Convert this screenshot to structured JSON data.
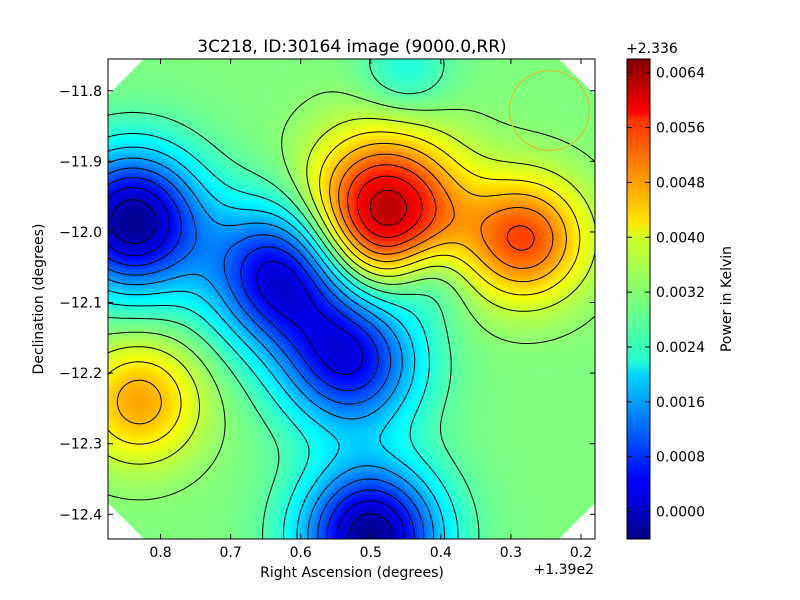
{
  "chart_data": {
    "type": "heatmap",
    "title": "3C218, ID:30164 image (9000.0,RR)",
    "xlabel": "Right Ascension (degrees)",
    "ylabel": "Declination (degrees)",
    "x_offset_label": "+1.39e2",
    "x_ticks": [
      {
        "value": 0.8,
        "label": "0.8"
      },
      {
        "value": 0.7,
        "label": "0.7"
      },
      {
        "value": 0.6,
        "label": "0.6"
      },
      {
        "value": 0.5,
        "label": "0.5"
      },
      {
        "value": 0.4,
        "label": "0.4"
      },
      {
        "value": 0.3,
        "label": "0.3"
      },
      {
        "value": 0.2,
        "label": "0.2"
      }
    ],
    "y_ticks": [
      {
        "value": -11.8,
        "label": "−11.8"
      },
      {
        "value": -11.9,
        "label": "−11.9"
      },
      {
        "value": -12.0,
        "label": "−12.0"
      },
      {
        "value": -12.1,
        "label": "−12.1"
      },
      {
        "value": -12.2,
        "label": "−12.2"
      },
      {
        "value": -12.3,
        "label": "−12.3"
      },
      {
        "value": -12.4,
        "label": "−12.4"
      }
    ],
    "xlim": [
      0.875,
      0.18
    ],
    "ylim": [
      -12.435,
      -11.755
    ],
    "colorbar": {
      "label": "Power in Kelvin",
      "offset_label": "+2.336",
      "vmin": -0.0004,
      "vmax": 0.0066,
      "colormap": "jet",
      "ticks": [
        {
          "value": 0.0064,
          "label": "0.0064"
        },
        {
          "value": 0.0056,
          "label": "0.0056"
        },
        {
          "value": 0.0048,
          "label": "0.0048"
        },
        {
          "value": 0.004,
          "label": "0.0040"
        },
        {
          "value": 0.0032,
          "label": "0.0032"
        },
        {
          "value": 0.0024,
          "label": "0.0024"
        },
        {
          "value": 0.0016,
          "label": "0.0016"
        },
        {
          "value": 0.0008,
          "label": "0.0008"
        },
        {
          "value": 0.0,
          "label": "0.0000"
        }
      ]
    },
    "field_features": [
      {
        "kind": "maximum",
        "ra": 0.48,
        "dec": -11.975,
        "value": 0.0064
      },
      {
        "kind": "minimum",
        "ra": 0.84,
        "dec": -11.985,
        "value": -0.0003
      },
      {
        "kind": "minimum",
        "ra": 0.63,
        "dec": -12.06,
        "value": 0.0002
      },
      {
        "kind": "minimum",
        "ra": 0.53,
        "dec": -12.18,
        "value": 0.0004
      },
      {
        "kind": "minimum",
        "ra": 0.5,
        "dec": -12.43,
        "value": -0.0003
      },
      {
        "kind": "local_min",
        "ra": 0.42,
        "dec": -12.06,
        "value": 0.0022
      },
      {
        "kind": "local_max",
        "ra": 0.28,
        "dec": -12.01,
        "value": 0.0052
      },
      {
        "kind": "local_max",
        "ra": 0.83,
        "dec": -12.24,
        "value": 0.0046
      },
      {
        "kind": "local_min",
        "ra": 0.45,
        "dec": -11.77,
        "value": 0.0024
      }
    ],
    "beam_circle": {
      "ra": 0.245,
      "dec": -11.828,
      "radius_deg": 0.057,
      "color": "#c8c832"
    },
    "grid": false,
    "contours": true,
    "legend": "none"
  }
}
